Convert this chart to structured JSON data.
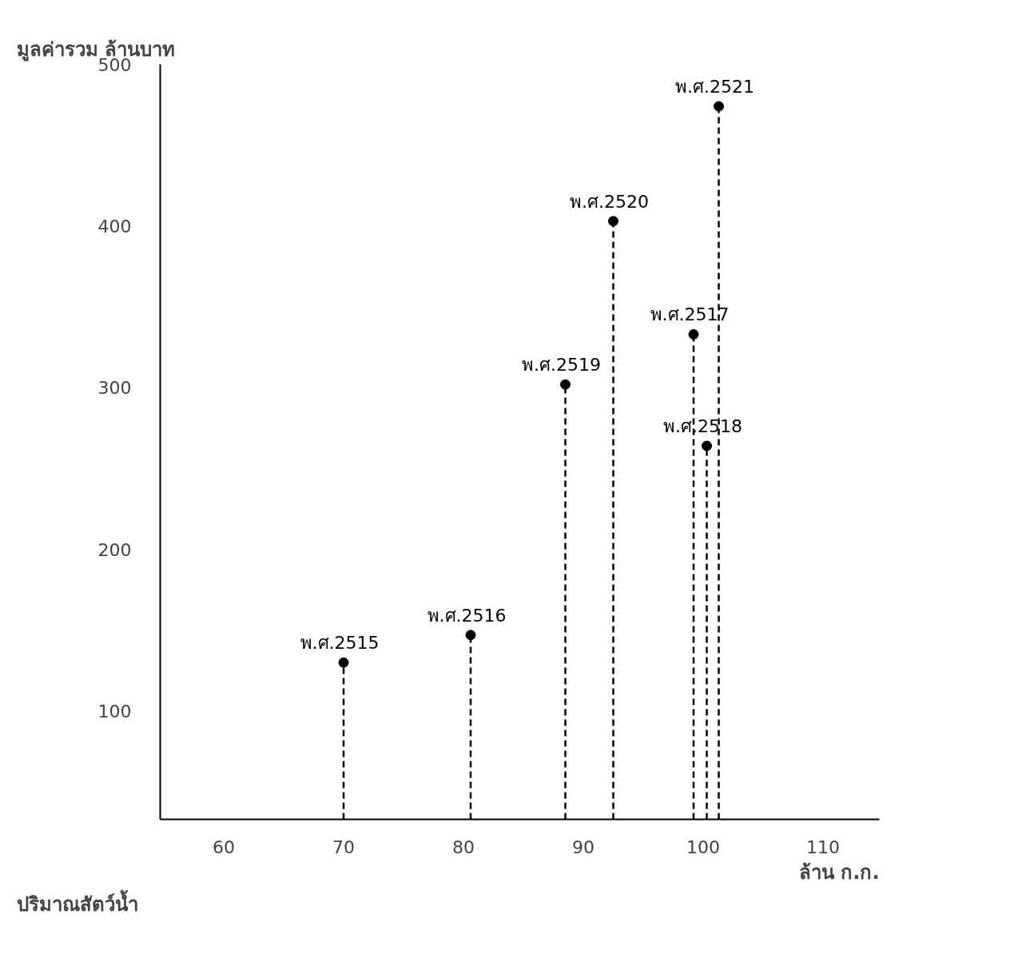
{
  "chart_data": {
    "type": "lollipop",
    "ylabel": "มูลค่ารวม   ล้านบาท",
    "xlabel": "ปริมาณสัตว์น้ำ",
    "annotations": [
      "ล้าน ก.ก."
    ],
    "xlim": [
      54.7,
      114.7
    ],
    "xticks": [
      60,
      70,
      80,
      90,
      100,
      110
    ],
    "ylim": [
      33,
      500
    ],
    "yticks": [
      100,
      200,
      300,
      400,
      500
    ],
    "grid": false,
    "marker": "circle",
    "line_style": "dashed",
    "series": [
      {
        "color": "#000000",
        "x": [
          70.0,
          80.6,
          88.5,
          92.5,
          99.2,
          100.3,
          101.3
        ],
        "values": [
          130,
          147,
          302,
          403,
          333,
          264,
          474
        ],
        "value_labels": [
          "พ.ศ.2515",
          "พ.ศ.2516",
          "พ.ศ.2519",
          "พ.ศ.2520",
          "พ.ศ.2517",
          "พ.ศ.2518",
          "พ.ศ.2521"
        ]
      }
    ]
  }
}
